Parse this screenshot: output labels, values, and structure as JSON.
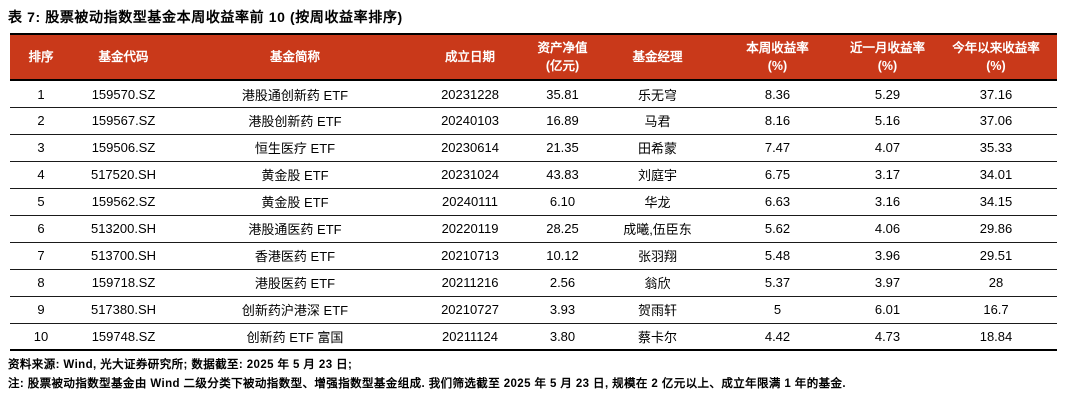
{
  "title": "表 7: 股票被动指数型基金本周收益率前 10 (按周收益率排序)",
  "colors": {
    "header_bg": "#C9391A",
    "header_text": "#FFFFFF",
    "border": "#000000",
    "body_text": "#000000"
  },
  "table": {
    "columns": [
      {
        "id": "rank",
        "label": "排序"
      },
      {
        "id": "fund-code",
        "label": "基金代码"
      },
      {
        "id": "fund-name",
        "label": "基金简称"
      },
      {
        "id": "inception-date",
        "label": "成立日期"
      },
      {
        "id": "net-assets",
        "label": "资产净值",
        "unit": "(亿元)"
      },
      {
        "id": "fund-manager",
        "label": "基金经理"
      },
      {
        "id": "weekly-return",
        "label": "本周收益率",
        "unit": "(%)"
      },
      {
        "id": "monthly-return",
        "label": "近一月收益率",
        "unit": "(%)"
      },
      {
        "id": "ytd-return",
        "label": "今年以来收益率",
        "unit": "(%)"
      }
    ],
    "rows": [
      [
        "1",
        "159570.SZ",
        "港股通创新药 ETF",
        "20231228",
        "35.81",
        "乐无穹",
        "8.36",
        "5.29",
        "37.16"
      ],
      [
        "2",
        "159567.SZ",
        "港股创新药 ETF",
        "20240103",
        "16.89",
        "马君",
        "8.16",
        "5.16",
        "37.06"
      ],
      [
        "3",
        "159506.SZ",
        "恒生医疗 ETF",
        "20230614",
        "21.35",
        "田希蒙",
        "7.47",
        "4.07",
        "35.33"
      ],
      [
        "4",
        "517520.SH",
        "黄金股 ETF",
        "20231024",
        "43.83",
        "刘庭宇",
        "6.75",
        "3.17",
        "34.01"
      ],
      [
        "5",
        "159562.SZ",
        "黄金股 ETF",
        "20240111",
        "6.10",
        "华龙",
        "6.63",
        "3.16",
        "34.15"
      ],
      [
        "6",
        "513200.SH",
        "港股通医药 ETF",
        "20220119",
        "28.25",
        "成曦,伍臣东",
        "5.62",
        "4.06",
        "29.86"
      ],
      [
        "7",
        "513700.SH",
        "香港医药 ETF",
        "20210713",
        "10.12",
        "张羽翔",
        "5.48",
        "3.96",
        "29.51"
      ],
      [
        "8",
        "159718.SZ",
        "港股医药 ETF",
        "20211216",
        "2.56",
        "翁欣",
        "5.37",
        "3.97",
        "28"
      ],
      [
        "9",
        "517380.SH",
        "创新药沪港深 ETF",
        "20210727",
        "3.93",
        "贺雨轩",
        "5",
        "6.01",
        "16.7"
      ],
      [
        "10",
        "159748.SZ",
        "创新药 ETF 富国",
        "20211124",
        "3.80",
        "蔡卡尔",
        "4.42",
        "4.73",
        "18.84"
      ]
    ]
  },
  "footnotes": {
    "source": "资料来源: Wind, 光大证券研究所; 数据截至: 2025 年 5 月 23 日;",
    "note": "注: 股票被动指数型基金由 Wind 二级分类下被动指数型、增强指数型基金组成. 我们筛选截至 2025 年 5 月 23 日, 规模在 2 亿元以上、成立年限满 1 年的基金."
  }
}
